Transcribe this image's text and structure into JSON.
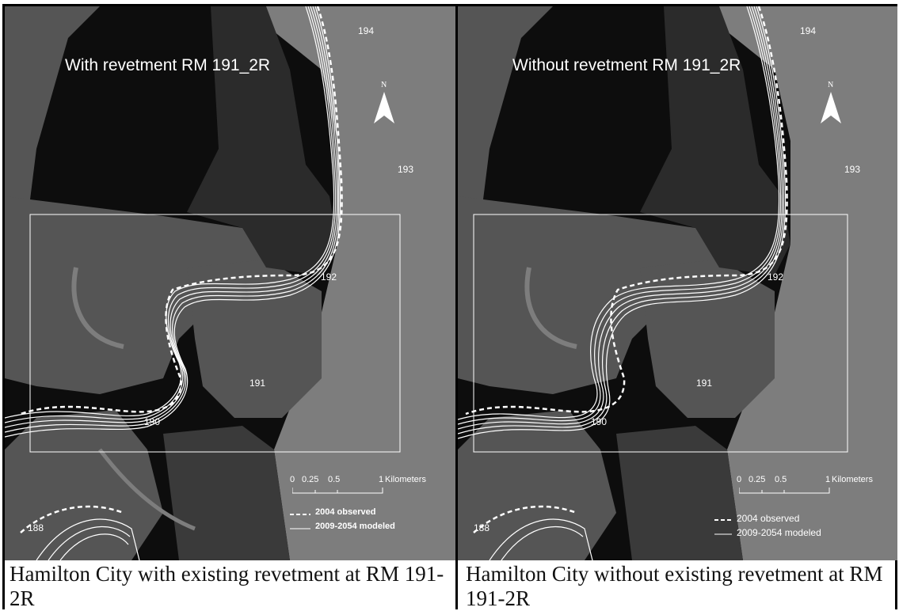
{
  "panels": [
    {
      "title": "With revetment RM 191_2R",
      "caption": "Hamilton City with existing revetment at RM 191-2R",
      "variant": "with"
    },
    {
      "title": "Without revetment RM 191_2R",
      "caption": "Hamilton City without existing revetment at RM 191-2R",
      "variant": "without"
    }
  ],
  "river_miles": [
    "194",
    "193",
    "192",
    "191",
    "190",
    "188"
  ],
  "north_label": "N",
  "scale_bar": {
    "ticks": [
      "0",
      "0.25",
      "0.5",
      "1"
    ],
    "unit": "Kilometers"
  },
  "legend": {
    "observed": "2004 observed",
    "modeled": "2009-2054 modeled"
  },
  "colors": {
    "background_dark": "#0d0d0d",
    "floodplain_mid": "#555555",
    "floodplain_light": "#7d7d7d",
    "channel_lines": "#ffffff"
  }
}
